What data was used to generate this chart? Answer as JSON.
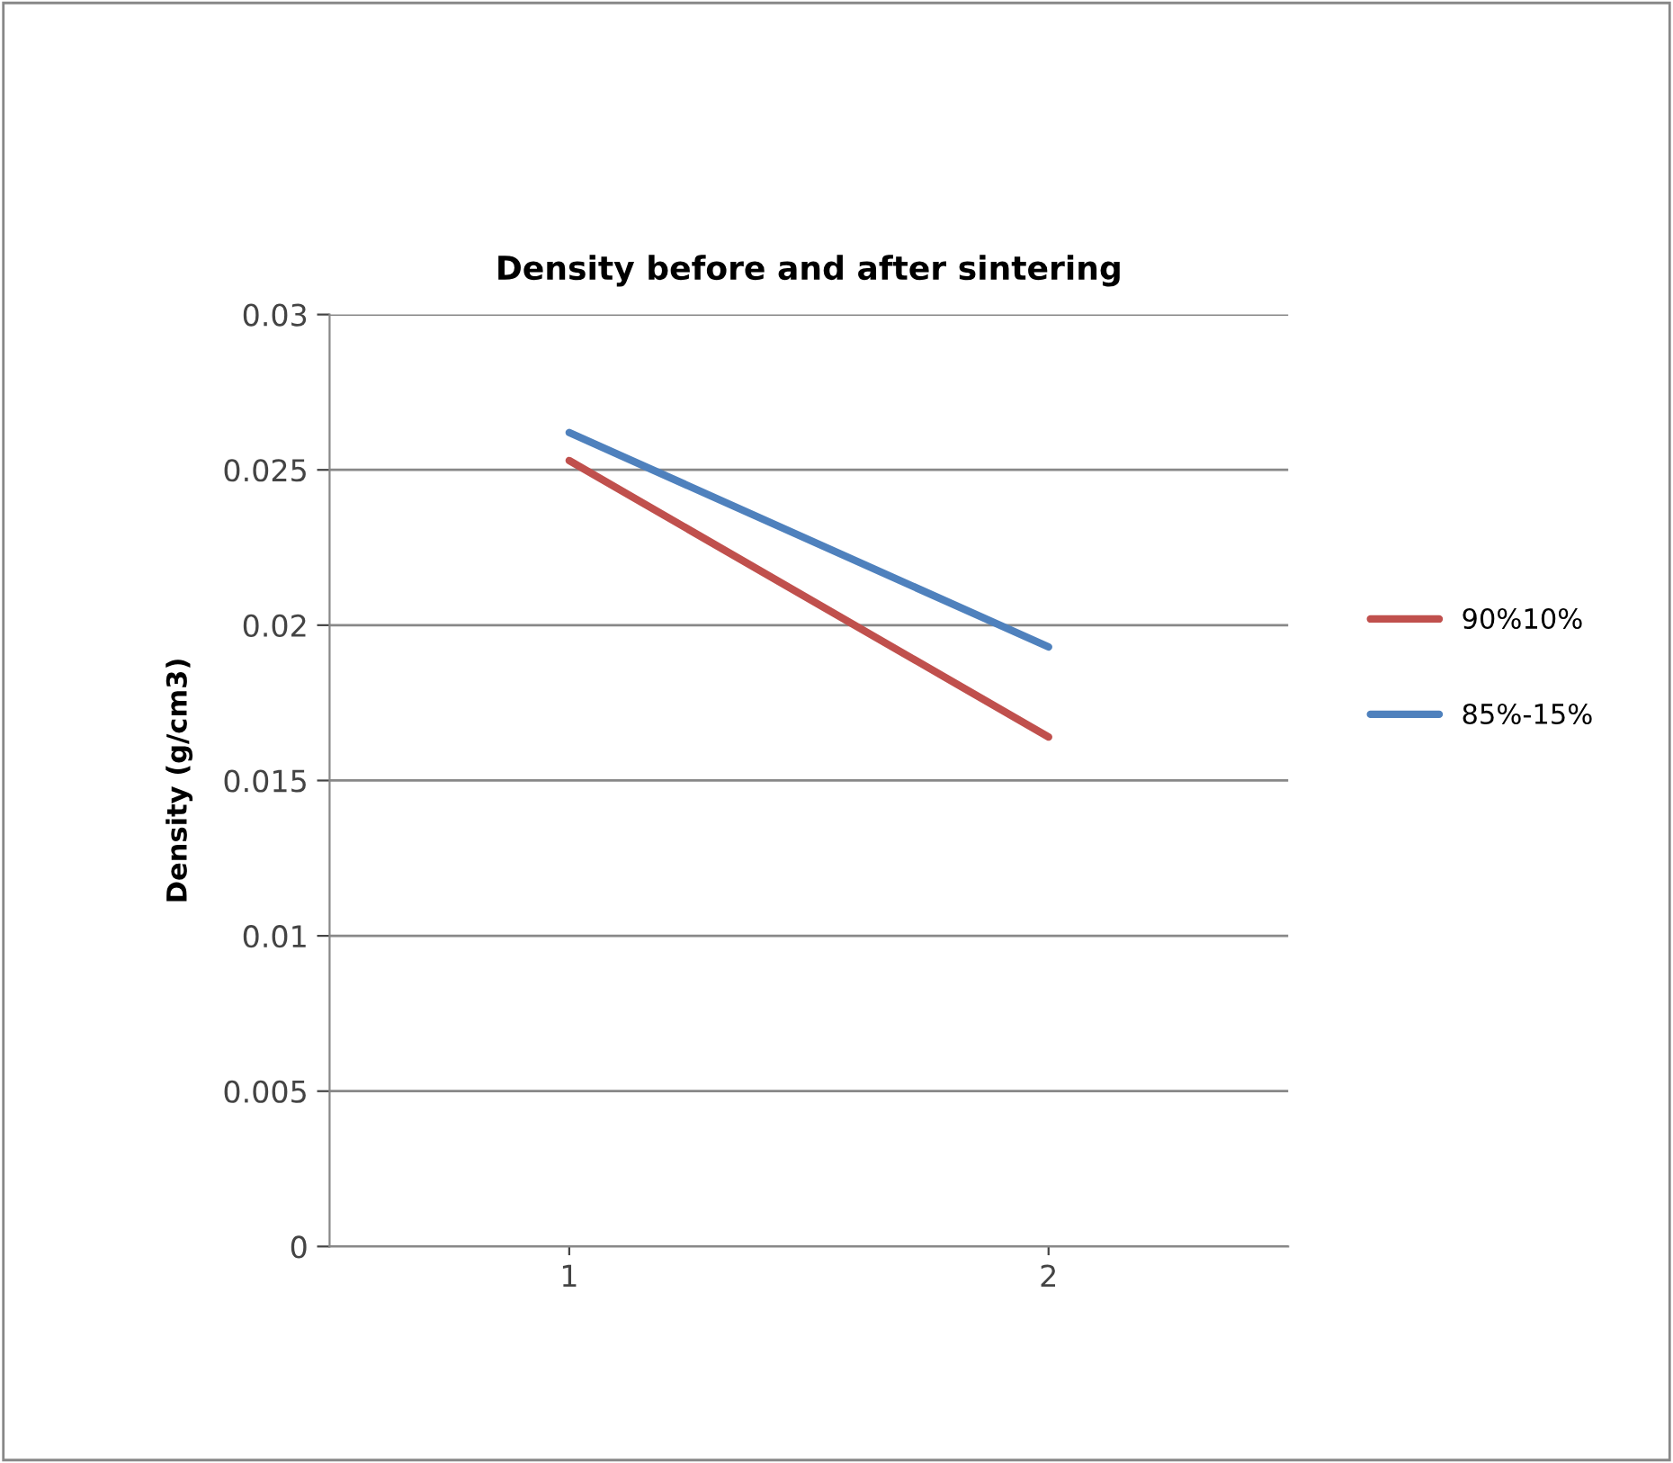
{
  "chart_data": {
    "type": "line",
    "title": "Density before and after sintering",
    "ylabel": "Density (g/cm3)",
    "categories": [
      "1",
      "2"
    ],
    "series": [
      {
        "name": "90%10%",
        "color": "#c0504d",
        "values": [
          0.0253,
          0.0164
        ]
      },
      {
        "name": "85%-15%",
        "color": "#4f81bd",
        "values": [
          0.0262,
          0.0193
        ]
      }
    ],
    "ylim": [
      0,
      0.03
    ],
    "yticks": [
      {
        "value": 0,
        "label": "0"
      },
      {
        "value": 0.005,
        "label": "0.005"
      },
      {
        "value": 0.01,
        "label": "0.01"
      },
      {
        "value": 0.015,
        "label": "0.015"
      },
      {
        "value": 0.02,
        "label": "0.02"
      },
      {
        "value": 0.025,
        "label": "0.025"
      },
      {
        "value": 0.03,
        "label": "0.03"
      }
    ],
    "grid": "y",
    "legend": "right",
    "marker": "none",
    "line_style": "solid"
  }
}
